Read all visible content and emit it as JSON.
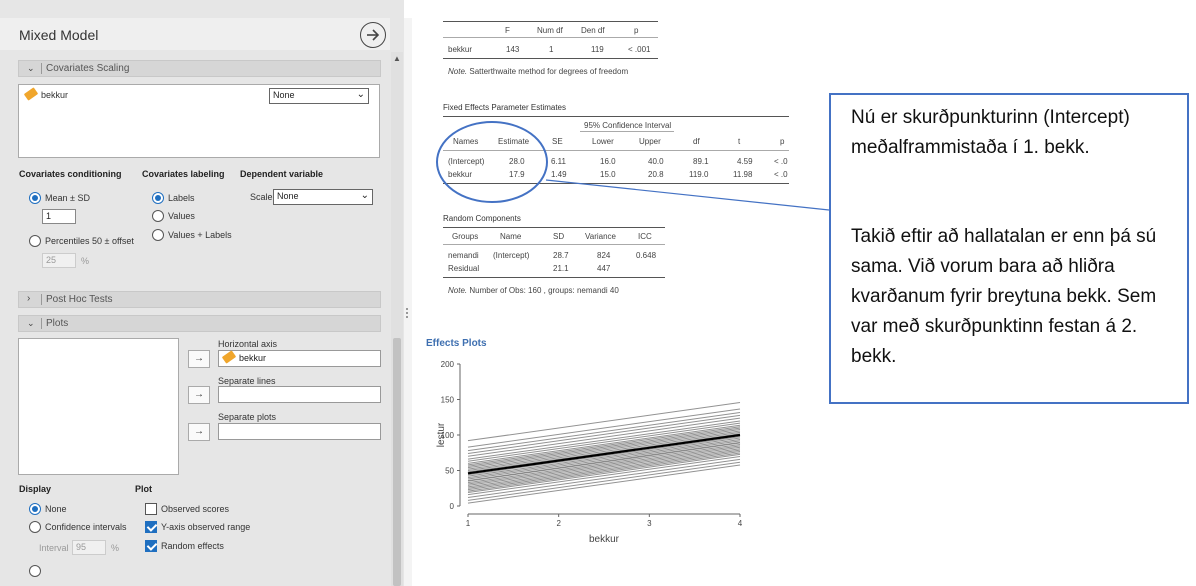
{
  "panel": {
    "title": "Mixed Model",
    "sections": {
      "covariates_scaling": "Covariates Scaling",
      "post_hoc": "Post Hoc Tests",
      "plots": "Plots"
    },
    "covariate": {
      "name": "bekkur",
      "scaling": "None"
    },
    "conditioning": {
      "label": "Covariates conditioning",
      "mean_sd": "Mean ± SD",
      "mean_sd_value": "1",
      "percentiles": "Percentiles 50 ± offset",
      "percentiles_value": "25",
      "percent_sign": "%"
    },
    "labeling": {
      "label": "Covariates labeling",
      "labels": "Labels",
      "values": "Values",
      "values_labels": "Values + Labels"
    },
    "dependent": {
      "label": "Dependent variable",
      "scale_label": "Scale",
      "scale_value": "None"
    },
    "plots": {
      "horizontal_axis": "Horizontal axis",
      "horizontal_value": "bekkur",
      "separate_lines": "Separate lines",
      "separate_plots": "Separate plots",
      "arrow": "→"
    },
    "display": {
      "label": "Display",
      "none": "None",
      "ci": "Confidence intervals",
      "interval_label": "Interval",
      "interval_value": "95",
      "percent_sign": "%"
    },
    "plot_opts": {
      "label": "Plot",
      "observed_scores": "Observed scores",
      "y_axis_observed": "Y-axis observed range",
      "random_effects": "Random effects"
    }
  },
  "anova": {
    "headers": [
      "",
      "F",
      "Num df",
      "Den df",
      "p"
    ],
    "row": [
      "bekkur",
      "143",
      "1",
      "119",
      "< .001"
    ],
    "note_label": "Note.",
    "note_text": "Satterthwaite method for degrees of freedom"
  },
  "fixed": {
    "title": "Fixed Effects Parameter Estimates",
    "ci_header": "95% Confidence Interval",
    "headers": [
      "Names",
      "Estimate",
      "SE",
      "Lower",
      "Upper",
      "df",
      "t",
      "p"
    ],
    "rows": [
      [
        "(Intercept)",
        "28.0",
        "6.11",
        "16.0",
        "40.0",
        "89.1",
        "4.59",
        "< .0"
      ],
      [
        "bekkur",
        "17.9",
        "1.49",
        "15.0",
        "20.8",
        "119.0",
        "11.98",
        "< .0"
      ]
    ]
  },
  "random": {
    "title": "Random Components",
    "headers": [
      "Groups",
      "Name",
      "SD",
      "Variance",
      "ICC"
    ],
    "rows": [
      [
        "nemandi",
        "(Intercept)",
        "28.7",
        "824",
        "0.648"
      ],
      [
        "Residual",
        "",
        "21.1",
        "447",
        ""
      ]
    ],
    "note_label": "Note.",
    "note_text": "Number of Obs: 160 , groups: nemandi 40"
  },
  "effects_title": "Effects Plots",
  "chart_data": {
    "type": "line",
    "xlabel": "bekkur",
    "ylabel": "lestur",
    "x_ticks": [
      "1",
      "2",
      "3",
      "4"
    ],
    "y_ticks": [
      "0",
      "50",
      "100",
      "150",
      "200"
    ],
    "xlim": [
      1,
      4
    ],
    "ylim": [
      0,
      200
    ],
    "main_series": {
      "x": [
        1,
        4
      ],
      "y": [
        46,
        100
      ],
      "color": "#000000"
    },
    "random_intercepts": [
      92,
      83,
      78,
      74,
      70,
      66,
      63,
      60,
      58,
      56,
      54,
      52,
      50,
      48,
      46,
      44,
      42,
      40,
      38,
      36,
      35,
      33,
      31,
      29,
      27,
      25,
      23,
      21,
      19,
      16,
      12,
      8,
      4
    ],
    "slope_per_unit": 17.9,
    "random_line_color": "#6e6e6e"
  },
  "callout": {
    "p1": "Nú er skurðpunkturinn (Intercept) meðalframmistaða í 1. bekk.",
    "p2": "Takið eftir að hallatalan er enn þá sú sama. Við vorum bara að hliðra kvarðanum fyrir breytuna bekk. Sem var með skurðpunktinn festan á 2. bekk.",
    "border_color": "#4472c4"
  },
  "annotation_color": "#4472c4"
}
